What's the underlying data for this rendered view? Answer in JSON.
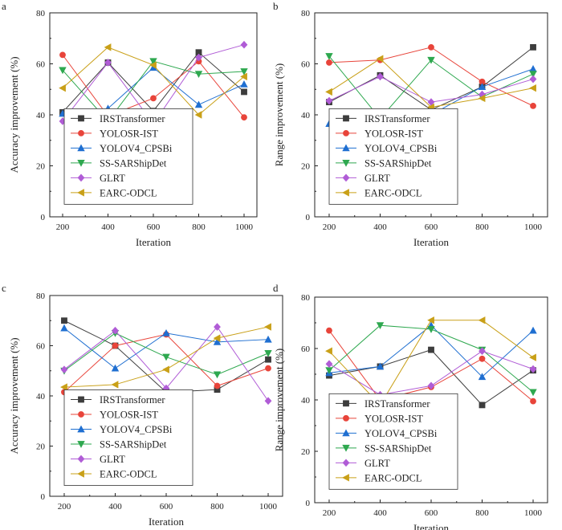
{
  "figure": {
    "series_names": [
      "IRSTransformer",
      "YOLOSR-IST",
      "YOLOV4_CPSBi",
      "SS-SARShipDet",
      "GLRT",
      "EARC-ODCL"
    ],
    "series_colors": [
      "#3d3d3d",
      "#e8443a",
      "#1f6fd1",
      "#2ea84f",
      "#b05cd6",
      "#c9a018"
    ],
    "series_markers": [
      "square",
      "circle",
      "triangle-up",
      "triangle-down",
      "diamond",
      "triangle-left"
    ]
  },
  "chart_data": [
    {
      "panel_label": "a",
      "type": "line",
      "title": "",
      "xlabel": "Iteration",
      "ylabel": "Accuracy improvement (%)",
      "x": [
        200,
        400,
        600,
        800,
        1000
      ],
      "x_ticks": [
        "200",
        "400",
        "600",
        "800",
        "1000"
      ],
      "ylim": [
        0,
        80
      ],
      "y_ticks": [
        "0",
        "20",
        "40",
        "60",
        "80"
      ],
      "legend_position": "lower-left",
      "series": [
        {
          "name": "IRSTransformer",
          "values": [
            41,
            60.5,
            41.5,
            64.5,
            49
          ]
        },
        {
          "name": "YOLOSR-IST",
          "values": [
            63.5,
            39.5,
            46.5,
            61,
            39
          ]
        },
        {
          "name": "YOLOV4_CPSBi",
          "values": [
            40.5,
            42.5,
            58.5,
            44,
            52
          ]
        },
        {
          "name": "SS-SARShipDet",
          "values": [
            57.5,
            37.5,
            61,
            56,
            57
          ]
        },
        {
          "name": "GLRT",
          "values": [
            37.5,
            60.5,
            36.5,
            62.5,
            67.5
          ]
        },
        {
          "name": "EARC-ODCL",
          "values": [
            50.5,
            66.5,
            59.5,
            40,
            55
          ]
        }
      ]
    },
    {
      "panel_label": "b",
      "type": "line",
      "title": "",
      "xlabel": "Iteration",
      "ylabel": "Range improvement (%)",
      "x": [
        200,
        400,
        600,
        800,
        1000
      ],
      "x_ticks": [
        "200",
        "400",
        "600",
        "800",
        "1000"
      ],
      "ylim": [
        0,
        80
      ],
      "y_ticks": [
        "0",
        "20",
        "40",
        "60",
        "80"
      ],
      "legend_position": "lower-left",
      "series": [
        {
          "name": "IRSTransformer",
          "values": [
            45,
            55.5,
            42,
            51,
            66.5
          ]
        },
        {
          "name": "YOLOSR-IST",
          "values": [
            60.5,
            61.5,
            66.5,
            53,
            43.5
          ]
        },
        {
          "name": "YOLOV4_CPSBi",
          "values": [
            36.5,
            39.5,
            40,
            51,
            58
          ]
        },
        {
          "name": "SS-SARShipDet",
          "values": [
            63,
            38.5,
            61.5,
            47,
            56
          ]
        },
        {
          "name": "GLRT",
          "values": [
            45.5,
            55,
            45,
            48,
            54
          ]
        },
        {
          "name": "EARC-ODCL",
          "values": [
            49,
            62,
            43,
            46.5,
            50.5
          ]
        }
      ]
    },
    {
      "panel_label": "c",
      "type": "line",
      "title": "",
      "xlabel": "Iteration",
      "ylabel": "Accuracy improvement (%)",
      "x": [
        200,
        400,
        600,
        800,
        1000
      ],
      "x_ticks": [
        "200",
        "400",
        "600",
        "800",
        "1000"
      ],
      "ylim": [
        0,
        80
      ],
      "y_ticks": [
        "0",
        "20",
        "40",
        "60",
        "80"
      ],
      "legend_position": "lower-left",
      "series": [
        {
          "name": "IRSTransformer",
          "values": [
            70,
            60,
            41.5,
            42.5,
            54.5
          ]
        },
        {
          "name": "YOLOSR-IST",
          "values": [
            41.5,
            60,
            64.5,
            44,
            51
          ]
        },
        {
          "name": "YOLOV4_CPSBi",
          "values": [
            67,
            51,
            65,
            61.5,
            62.5
          ]
        },
        {
          "name": "SS-SARShipDet",
          "values": [
            50,
            65,
            55.5,
            48.5,
            57
          ]
        },
        {
          "name": "GLRT",
          "values": [
            50.5,
            66,
            43,
            67.5,
            38
          ]
        },
        {
          "name": "EARC-ODCL",
          "values": [
            43.5,
            44.5,
            50.5,
            63,
            67.5
          ]
        }
      ]
    },
    {
      "panel_label": "d",
      "type": "line",
      "title": "",
      "xlabel": "Iteration",
      "ylabel": "Range improvement (%)",
      "x": [
        200,
        400,
        600,
        800,
        1000
      ],
      "x_ticks": [
        "200",
        "400",
        "600",
        "800",
        "1000"
      ],
      "ylim": [
        0,
        80
      ],
      "y_ticks": [
        "0",
        "20",
        "40",
        "60",
        "80"
      ],
      "legend_position": "lower-left",
      "series": [
        {
          "name": "IRSTransformer",
          "values": [
            49.5,
            53,
            59.5,
            38,
            51.5
          ]
        },
        {
          "name": "YOLOSR-IST",
          "values": [
            67,
            40,
            45,
            56,
            39.5
          ]
        },
        {
          "name": "YOLOV4_CPSBi",
          "values": [
            50.5,
            53,
            69,
            49,
            67
          ]
        },
        {
          "name": "SS-SARShipDet",
          "values": [
            51.5,
            69,
            67.5,
            59.5,
            43
          ]
        },
        {
          "name": "GLRT",
          "values": [
            54,
            42,
            45.5,
            59,
            52
          ]
        },
        {
          "name": "EARC-ODCL",
          "values": [
            59,
            38,
            71,
            71,
            56.5
          ]
        }
      ]
    }
  ]
}
